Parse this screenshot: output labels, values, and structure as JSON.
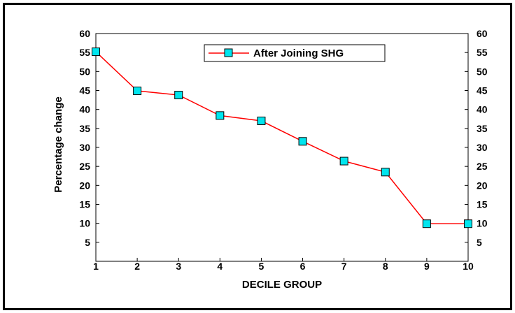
{
  "chart_data": {
    "type": "line",
    "xlabel": "DECILE GROUP",
    "ylabel": "Percentage change",
    "x": [
      1,
      2,
      3,
      4,
      5,
      6,
      7,
      8,
      9,
      10
    ],
    "series": [
      {
        "name": "After Joining SHG",
        "values": [
          55.2,
          44.9,
          43.8,
          38.4,
          37.0,
          31.6,
          26.4,
          23.5,
          9.9,
          9.9
        ]
      }
    ],
    "xlim": [
      1,
      10
    ],
    "ylim": [
      0,
      60
    ],
    "yticks": [
      5,
      10,
      15,
      20,
      25,
      30,
      35,
      40,
      45,
      50,
      55,
      60
    ],
    "xticks": [
      1,
      2,
      3,
      4,
      5,
      6,
      7,
      8,
      9,
      10
    ],
    "grid": false,
    "legend_position": "top-center",
    "line_color": "#ff0000",
    "marker_color": "#00e5ee",
    "marker_edge_color": "#000000",
    "marker": "square"
  }
}
